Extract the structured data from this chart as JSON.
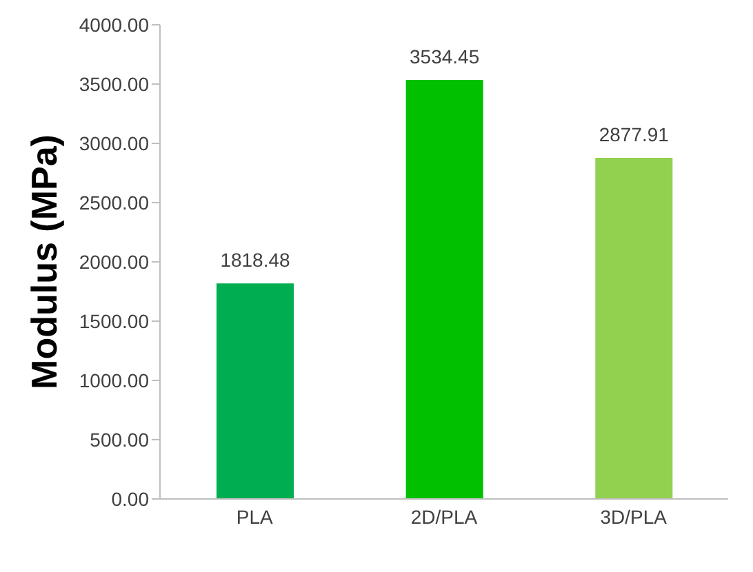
{
  "chart_data": {
    "type": "bar",
    "ylabel": "Modulus (MPa)",
    "categories": [
      "PLA",
      "2D/PLA",
      "3D/PLA"
    ],
    "values": [
      1818.48,
      3534.45,
      2877.91
    ],
    "colors": [
      "#00ad50",
      "#00c000",
      "#92d050"
    ],
    "data_labels": true,
    "ylim": [
      0,
      4000
    ],
    "yticks": [
      {
        "value": 0,
        "label": "0.00"
      },
      {
        "value": 500,
        "label": "500.00"
      },
      {
        "value": 1000,
        "label": "1000.00"
      },
      {
        "value": 1500,
        "label": "1500.00"
      },
      {
        "value": 2000,
        "label": "2000.00"
      },
      {
        "value": 2500,
        "label": "2500.00"
      },
      {
        "value": 3000,
        "label": "3000.00"
      },
      {
        "value": 3500,
        "label": "3500.00"
      },
      {
        "value": 4000,
        "label": "4000.00"
      }
    ],
    "grid": false,
    "legend": false
  }
}
